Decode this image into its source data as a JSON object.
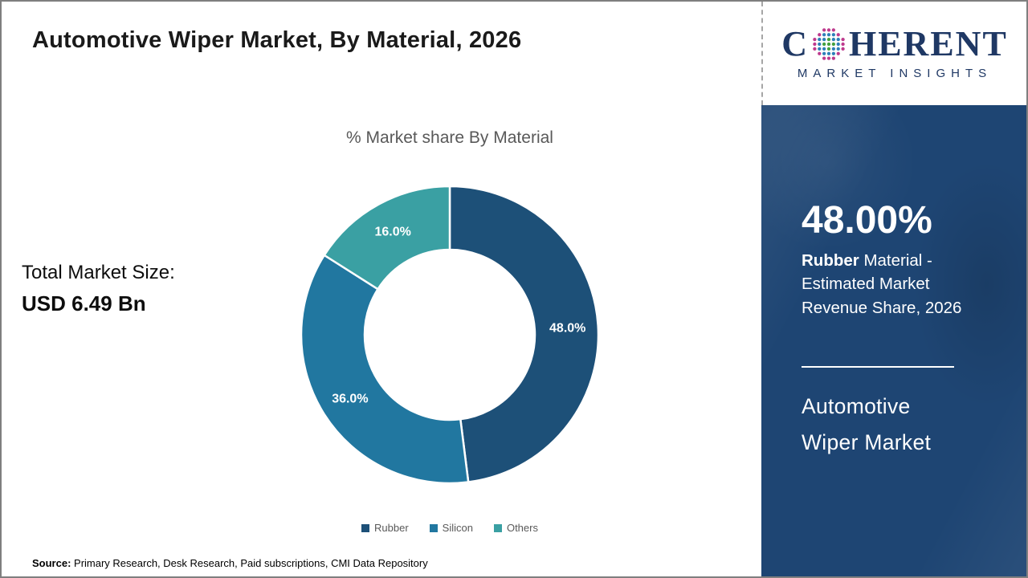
{
  "page": {
    "title": "Automotive Wiper Market, By Material, 2026",
    "source_label": "Source:",
    "source_text": " Primary Research, Desk Research, Paid subscriptions, CMI Data Repository"
  },
  "chart_data": {
    "type": "pie",
    "subtype": "donut",
    "title": "% Market share By Material",
    "categories": [
      "Rubber",
      "Silicon",
      "Others"
    ],
    "values": [
      48.0,
      36.0,
      16.0
    ],
    "slice_labels": [
      "48.0%",
      "36.0%",
      "16.0%"
    ],
    "colors": [
      "#1d5078",
      "#2177a0",
      "#3aa0a3"
    ],
    "start_angle_deg": 0,
    "direction": "clockwise",
    "legend_position": "bottom"
  },
  "stats": {
    "total_label": "Total Market Size:",
    "total_value": "USD 6.49 Bn"
  },
  "sidebar": {
    "panel_color": "#1e4573",
    "highlight_value": "48.00%",
    "desc_bold": "Rubber",
    "desc_rest": " Material - Estimated Market Revenue Share, 2026",
    "market_name_line1": "Automotive",
    "market_name_line2": "Wiper Market"
  },
  "logo": {
    "brand_prefix": "C",
    "brand_suffix": "HERENT",
    "brand_subtitle": "MARKET INSIGHTS",
    "navy": "#1f3864",
    "globe_green": "#44a13f",
    "globe_blue": "#2d7fb8",
    "globe_magenta": "#be3a8d"
  }
}
